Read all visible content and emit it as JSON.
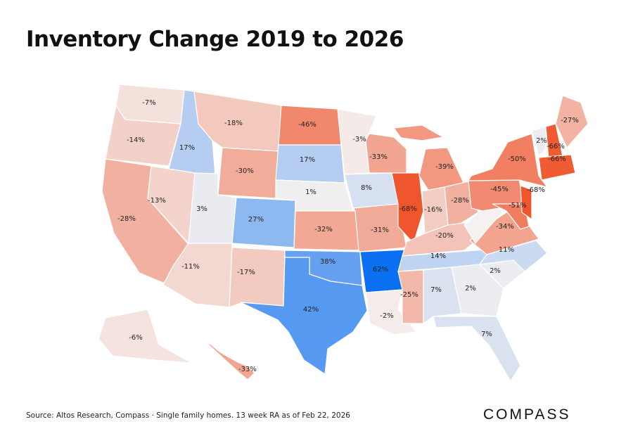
{
  "title": "Inventory Change 2019 to 2026",
  "source": "Source: Altos Research, Compass · Single family homes. 13 week RA as of Feb 22, 2026",
  "logo": "COMPASS",
  "colors": {
    "negative_max": "#f0562e",
    "positive_max": "#0a6ff0",
    "neutral": "#f4f1f0"
  },
  "states": {
    "WA": "-7%",
    "OR": "-14%",
    "CA": "-28%",
    "NV": "-13%",
    "ID": "17%",
    "MT": "-18%",
    "WY": "-30%",
    "UT": "3%",
    "CO": "27%",
    "AZ": "-11%",
    "NM": "-17%",
    "ND": "-46%",
    "SD": "17%",
    "NE": "1%",
    "KS": "-32%",
    "OK": "38%",
    "TX": "42%",
    "MN": "-3%",
    "IA": "8%",
    "MO": "-31%",
    "AR": "62%",
    "LA": "-2%",
    "WI": "-33%",
    "IL": "-68%",
    "MI": "-39%",
    "IN": "-16%",
    "OH": "-28%",
    "KY": "-20%",
    "TN": "14%",
    "MS": "-25%",
    "AL": "7%",
    "GA": "2%",
    "FL": "7%",
    "SC": "2%",
    "NC": "11%",
    "VA": "-34%",
    "WV": "",
    "PA": "-45%",
    "NY": "-50%",
    "MD": "-51%",
    "NJ": "-68%",
    "VT": "2%",
    "NH": "-66%",
    "ME": "-27%",
    "MA": "-66%",
    "AK": "-6%",
    "HI": "-33%"
  }
}
